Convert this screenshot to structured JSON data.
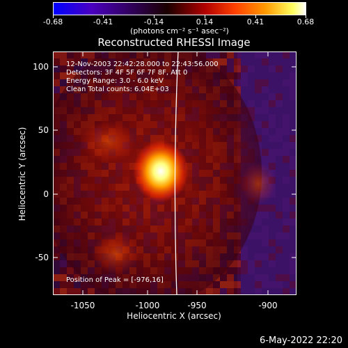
{
  "colorbar": {
    "ticks": [
      "-0.68",
      "-0.41",
      "-0.14",
      "0.14",
      "0.41",
      "0.68"
    ],
    "units": "(photons cm⁻² s⁻¹ asec⁻²)"
  },
  "title": "Reconstructed RHESSI Image",
  "info": {
    "time_range": "12-Nov-2003 22:42:28.000 to 22:43:56.000",
    "detectors": "Detectors: 3F 4F 5F 6F 7F 8F, Att 0",
    "energy": "Energy Range: 3.0 - 6.0 keV",
    "method": "Clean    Total counts: 6.04E+03",
    "peak": "Position of Peak = [-976,16]"
  },
  "axes": {
    "xlabel": "Heliocentric X (arcsec)",
    "ylabel": "Heliocentric Y (arcsec)",
    "xticks": [
      "-1050",
      "-1000",
      "-950",
      "-900"
    ],
    "yticks": [
      "100",
      "50",
      "0",
      "-50"
    ],
    "xrange": [
      -1066,
      -874
    ],
    "yrange": [
      -78,
      114
    ]
  },
  "footer": {
    "date": "6-May-2022 22:20"
  },
  "colors": {
    "background": "#000000",
    "foreground": "#ffffff"
  }
}
